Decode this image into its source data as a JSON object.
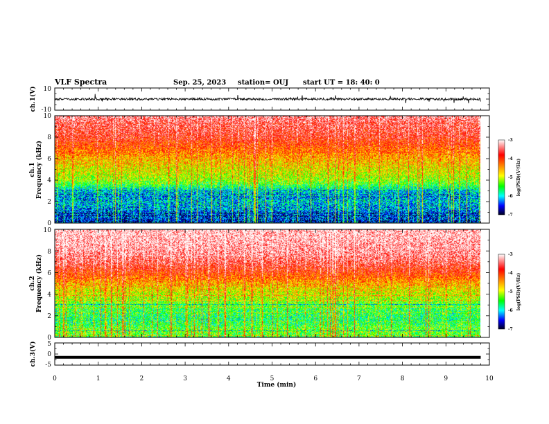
{
  "header": {
    "title": "VLF Spectra",
    "date": "Sep. 25, 2023",
    "station": "station= OUJ",
    "start": "start  UT =   18: 40: 0"
  },
  "chart_data": {
    "type": "heatmap",
    "x_axis": {
      "label": "Time  (min)",
      "range": [
        0,
        10
      ],
      "ticks": [
        "0",
        "1",
        "2",
        "3",
        "4",
        "5",
        "6",
        "7",
        "8",
        "9",
        "10"
      ]
    },
    "panels": [
      {
        "id": "ch1-waveform",
        "type": "line",
        "ylabel": "ch.1(V)",
        "ylim": [
          -10,
          10
        ],
        "yticks": [
          "10",
          "-10"
        ],
        "baseline": 0.0,
        "noise_amplitude": 2.0,
        "x_extent": [
          0,
          9.8
        ]
      },
      {
        "id": "ch1-spectrogram",
        "type": "heatmap",
        "ylabel_line1": "ch.1",
        "ylabel_line2": "Frequency  (kHz)",
        "ylim": [
          0,
          10
        ],
        "yticks": [
          "0",
          "2",
          "4",
          "6",
          "8",
          "10"
        ],
        "x_extent": [
          0,
          9.8
        ],
        "level_profile": [
          {
            "freq": 0.0,
            "level": -6.7
          },
          {
            "freq": 0.5,
            "level": -6.5
          },
          {
            "freq": 1.0,
            "level": -6.4
          },
          {
            "freq": 1.5,
            "level": -6.2
          },
          {
            "freq": 2.0,
            "level": -6.1
          },
          {
            "freq": 2.5,
            "level": -6.3
          },
          {
            "freq": 3.0,
            "level": -6.0
          },
          {
            "freq": 3.5,
            "level": -5.6
          },
          {
            "freq": 4.0,
            "level": -5.2
          },
          {
            "freq": 5.0,
            "level": -4.9
          },
          {
            "freq": 6.0,
            "level": -4.6
          },
          {
            "freq": 7.0,
            "level": -4.2
          },
          {
            "freq": 8.0,
            "level": -3.8
          },
          {
            "freq": 9.0,
            "level": -3.6
          },
          {
            "freq": 10.0,
            "level": -3.4
          }
        ]
      },
      {
        "id": "ch2-spectrogram",
        "type": "heatmap",
        "ylabel_line1": "ch.2",
        "ylabel_line2": "Frequency  (kHz)",
        "ylim": [
          0,
          10
        ],
        "yticks": [
          "0",
          "2",
          "4",
          "6",
          "8",
          "10"
        ],
        "x_extent": [
          0,
          9.8
        ],
        "level_profile": [
          {
            "freq": 0.0,
            "level": -5.6
          },
          {
            "freq": 0.5,
            "level": -5.3
          },
          {
            "freq": 1.0,
            "level": -5.5
          },
          {
            "freq": 1.5,
            "level": -5.7
          },
          {
            "freq": 2.0,
            "level": -5.6
          },
          {
            "freq": 2.5,
            "level": -5.6
          },
          {
            "freq": 3.0,
            "level": -5.4
          },
          {
            "freq": 4.0,
            "level": -5.0
          },
          {
            "freq": 5.0,
            "level": -4.6
          },
          {
            "freq": 6.0,
            "level": -4.0
          },
          {
            "freq": 7.0,
            "level": -3.6
          },
          {
            "freq": 8.0,
            "level": -3.3
          },
          {
            "freq": 9.0,
            "level": -3.2
          },
          {
            "freq": 10.0,
            "level": -3.1
          }
        ]
      },
      {
        "id": "ch3-waveform",
        "type": "line",
        "ylabel": "ch.3(V)",
        "ylim": [
          -5,
          5
        ],
        "yticks": [
          "5",
          "0",
          "-5"
        ],
        "baseline": -1.5,
        "noise_amplitude": 0.0,
        "x_extent": [
          0,
          9.8
        ]
      }
    ],
    "colorbar": {
      "label": "log(PSD)(V²/Hz)",
      "range": [
        -7,
        -3
      ],
      "ticks": [
        "-3",
        "-4",
        "-5",
        "-6",
        "-7"
      ],
      "colormap": [
        "#ffffff",
        "#ff0000",
        "#ffa500",
        "#ffff00",
        "#00ff00",
        "#00ffff",
        "#0000ff",
        "#000000"
      ]
    }
  }
}
